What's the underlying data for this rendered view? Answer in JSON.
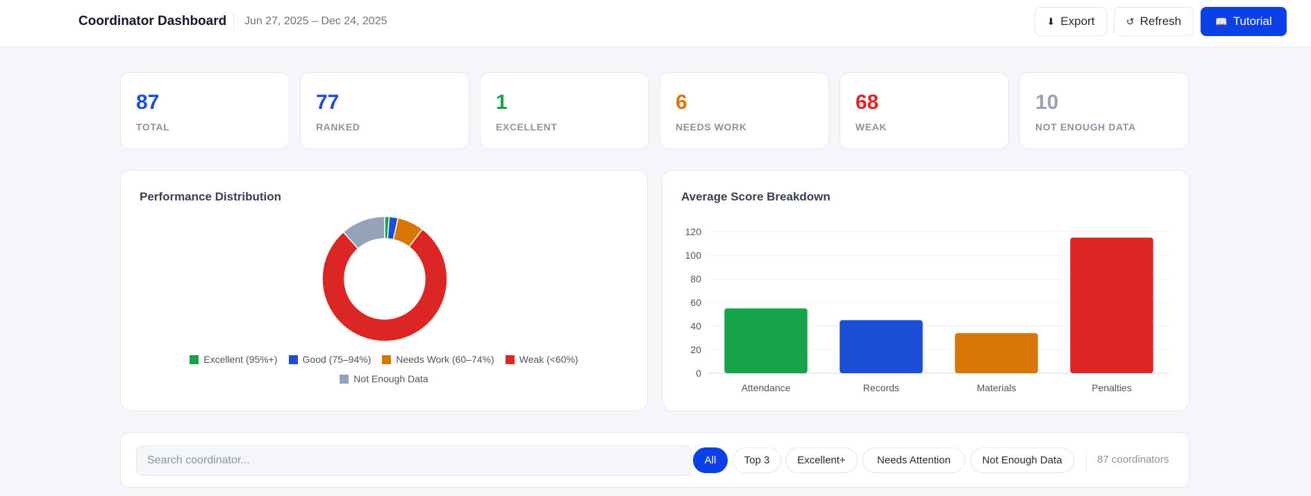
{
  "header": {
    "title": "Coordinator Dashboard",
    "date_range": "Jun 27, 2025 – Dec 24, 2025",
    "export_label": "Export",
    "refresh_label": "Refresh",
    "tutorial_label": "Tutorial"
  },
  "stats": [
    {
      "value": "87",
      "label": "TOTAL",
      "color": "#1d4ed8"
    },
    {
      "value": "77",
      "label": "RANKED",
      "color": "#1d4ed8"
    },
    {
      "value": "1",
      "label": "EXCELLENT",
      "color": "#16a34a"
    },
    {
      "value": "6",
      "label": "NEEDS WORK",
      "color": "#d97706"
    },
    {
      "value": "68",
      "label": "WEAK",
      "color": "#dc2626"
    },
    {
      "value": "10",
      "label": "NOT ENOUGH DATA",
      "color": "#94a3b8"
    }
  ],
  "performance": {
    "title": "Performance Distribution",
    "chart_data": {
      "type": "pie",
      "donut": true,
      "labels": [
        "Excellent (95%+)",
        "Good (75–94%)",
        "Needs Work (60–74%)",
        "Weak (<60%)",
        "Not Enough Data"
      ],
      "values": [
        1,
        2,
        6,
        68,
        10
      ],
      "colors": [
        "#16a34a",
        "#1d4ed8",
        "#d97706",
        "#dc2626",
        "#94a3b8"
      ],
      "legend_position": "bottom"
    }
  },
  "breakdown": {
    "title": "Average Score Breakdown",
    "chart_data": {
      "type": "bar",
      "categories": [
        "Attendance",
        "Records",
        "Materials",
        "Penalties"
      ],
      "values": [
        55,
        45,
        34,
        115
      ],
      "colors": [
        "#16a34a",
        "#1d4ed8",
        "#d97706",
        "#dc2626"
      ],
      "ylim": [
        0,
        120
      ],
      "yticks": [
        0,
        20,
        40,
        60,
        80,
        100,
        120
      ],
      "grid": true
    }
  },
  "filters": {
    "search_placeholder": "Search coordinator...",
    "pills": [
      "All",
      "Top 3",
      "Excellent+",
      "Needs Attention",
      "Not Enough Data"
    ],
    "active": "All",
    "count_text": "87 coordinators"
  },
  "icons": {
    "export": "download-icon",
    "refresh": "refresh-icon",
    "tutorial": "book-icon"
  }
}
